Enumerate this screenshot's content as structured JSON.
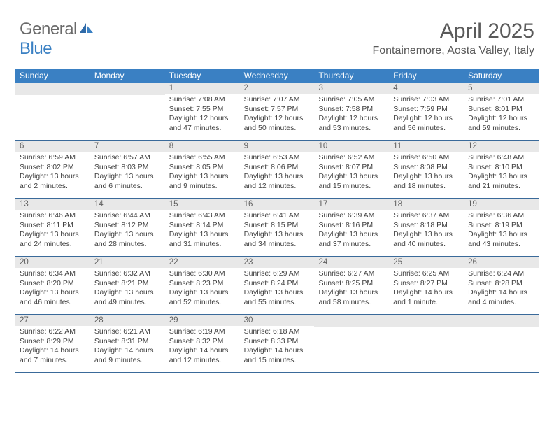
{
  "logo": {
    "text1": "General",
    "text2": "Blue"
  },
  "title": "April 2025",
  "location": "Fontainemore, Aosta Valley, Italy",
  "header_bg": "#3a80c3",
  "day_bg": "#e8e8e8",
  "border_color": "#3a6a9a",
  "dayNames": [
    "Sunday",
    "Monday",
    "Tuesday",
    "Wednesday",
    "Thursday",
    "Friday",
    "Saturday"
  ],
  "weeks": [
    [
      {
        "n": "",
        "sr": "",
        "ss": "",
        "dl": ""
      },
      {
        "n": "",
        "sr": "",
        "ss": "",
        "dl": ""
      },
      {
        "n": "1",
        "sr": "Sunrise: 7:08 AM",
        "ss": "Sunset: 7:55 PM",
        "dl": "Daylight: 12 hours and 47 minutes."
      },
      {
        "n": "2",
        "sr": "Sunrise: 7:07 AM",
        "ss": "Sunset: 7:57 PM",
        "dl": "Daylight: 12 hours and 50 minutes."
      },
      {
        "n": "3",
        "sr": "Sunrise: 7:05 AM",
        "ss": "Sunset: 7:58 PM",
        "dl": "Daylight: 12 hours and 53 minutes."
      },
      {
        "n": "4",
        "sr": "Sunrise: 7:03 AM",
        "ss": "Sunset: 7:59 PM",
        "dl": "Daylight: 12 hours and 56 minutes."
      },
      {
        "n": "5",
        "sr": "Sunrise: 7:01 AM",
        "ss": "Sunset: 8:01 PM",
        "dl": "Daylight: 12 hours and 59 minutes."
      }
    ],
    [
      {
        "n": "6",
        "sr": "Sunrise: 6:59 AM",
        "ss": "Sunset: 8:02 PM",
        "dl": "Daylight: 13 hours and 2 minutes."
      },
      {
        "n": "7",
        "sr": "Sunrise: 6:57 AM",
        "ss": "Sunset: 8:03 PM",
        "dl": "Daylight: 13 hours and 6 minutes."
      },
      {
        "n": "8",
        "sr": "Sunrise: 6:55 AM",
        "ss": "Sunset: 8:05 PM",
        "dl": "Daylight: 13 hours and 9 minutes."
      },
      {
        "n": "9",
        "sr": "Sunrise: 6:53 AM",
        "ss": "Sunset: 8:06 PM",
        "dl": "Daylight: 13 hours and 12 minutes."
      },
      {
        "n": "10",
        "sr": "Sunrise: 6:52 AM",
        "ss": "Sunset: 8:07 PM",
        "dl": "Daylight: 13 hours and 15 minutes."
      },
      {
        "n": "11",
        "sr": "Sunrise: 6:50 AM",
        "ss": "Sunset: 8:08 PM",
        "dl": "Daylight: 13 hours and 18 minutes."
      },
      {
        "n": "12",
        "sr": "Sunrise: 6:48 AM",
        "ss": "Sunset: 8:10 PM",
        "dl": "Daylight: 13 hours and 21 minutes."
      }
    ],
    [
      {
        "n": "13",
        "sr": "Sunrise: 6:46 AM",
        "ss": "Sunset: 8:11 PM",
        "dl": "Daylight: 13 hours and 24 minutes."
      },
      {
        "n": "14",
        "sr": "Sunrise: 6:44 AM",
        "ss": "Sunset: 8:12 PM",
        "dl": "Daylight: 13 hours and 28 minutes."
      },
      {
        "n": "15",
        "sr": "Sunrise: 6:43 AM",
        "ss": "Sunset: 8:14 PM",
        "dl": "Daylight: 13 hours and 31 minutes."
      },
      {
        "n": "16",
        "sr": "Sunrise: 6:41 AM",
        "ss": "Sunset: 8:15 PM",
        "dl": "Daylight: 13 hours and 34 minutes."
      },
      {
        "n": "17",
        "sr": "Sunrise: 6:39 AM",
        "ss": "Sunset: 8:16 PM",
        "dl": "Daylight: 13 hours and 37 minutes."
      },
      {
        "n": "18",
        "sr": "Sunrise: 6:37 AM",
        "ss": "Sunset: 8:18 PM",
        "dl": "Daylight: 13 hours and 40 minutes."
      },
      {
        "n": "19",
        "sr": "Sunrise: 6:36 AM",
        "ss": "Sunset: 8:19 PM",
        "dl": "Daylight: 13 hours and 43 minutes."
      }
    ],
    [
      {
        "n": "20",
        "sr": "Sunrise: 6:34 AM",
        "ss": "Sunset: 8:20 PM",
        "dl": "Daylight: 13 hours and 46 minutes."
      },
      {
        "n": "21",
        "sr": "Sunrise: 6:32 AM",
        "ss": "Sunset: 8:21 PM",
        "dl": "Daylight: 13 hours and 49 minutes."
      },
      {
        "n": "22",
        "sr": "Sunrise: 6:30 AM",
        "ss": "Sunset: 8:23 PM",
        "dl": "Daylight: 13 hours and 52 minutes."
      },
      {
        "n": "23",
        "sr": "Sunrise: 6:29 AM",
        "ss": "Sunset: 8:24 PM",
        "dl": "Daylight: 13 hours and 55 minutes."
      },
      {
        "n": "24",
        "sr": "Sunrise: 6:27 AM",
        "ss": "Sunset: 8:25 PM",
        "dl": "Daylight: 13 hours and 58 minutes."
      },
      {
        "n": "25",
        "sr": "Sunrise: 6:25 AM",
        "ss": "Sunset: 8:27 PM",
        "dl": "Daylight: 14 hours and 1 minute."
      },
      {
        "n": "26",
        "sr": "Sunrise: 6:24 AM",
        "ss": "Sunset: 8:28 PM",
        "dl": "Daylight: 14 hours and 4 minutes."
      }
    ],
    [
      {
        "n": "27",
        "sr": "Sunrise: 6:22 AM",
        "ss": "Sunset: 8:29 PM",
        "dl": "Daylight: 14 hours and 7 minutes."
      },
      {
        "n": "28",
        "sr": "Sunrise: 6:21 AM",
        "ss": "Sunset: 8:31 PM",
        "dl": "Daylight: 14 hours and 9 minutes."
      },
      {
        "n": "29",
        "sr": "Sunrise: 6:19 AM",
        "ss": "Sunset: 8:32 PM",
        "dl": "Daylight: 14 hours and 12 minutes."
      },
      {
        "n": "30",
        "sr": "Sunrise: 6:18 AM",
        "ss": "Sunset: 8:33 PM",
        "dl": "Daylight: 14 hours and 15 minutes."
      },
      {
        "n": "",
        "sr": "",
        "ss": "",
        "dl": ""
      },
      {
        "n": "",
        "sr": "",
        "ss": "",
        "dl": ""
      },
      {
        "n": "",
        "sr": "",
        "ss": "",
        "dl": ""
      }
    ]
  ]
}
